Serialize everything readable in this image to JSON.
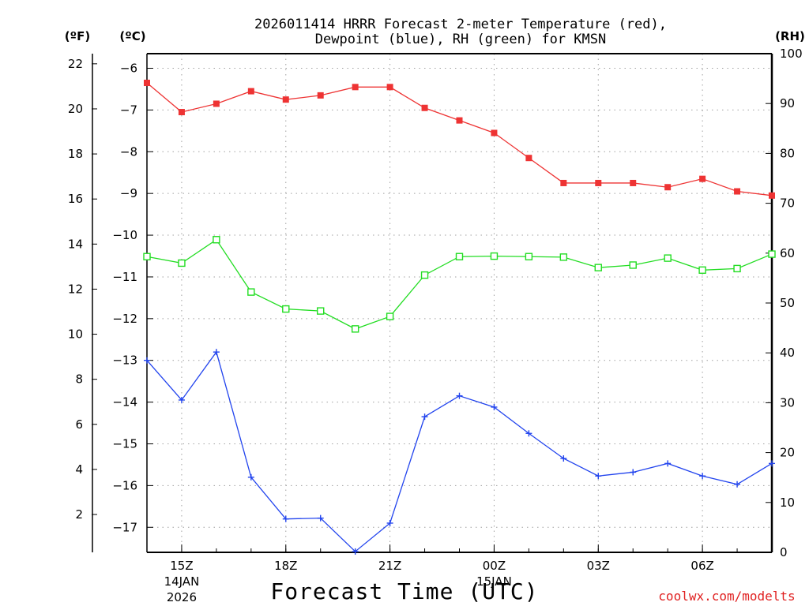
{
  "chart_data": {
    "type": "line",
    "title_line1": "2026011414 HRRR Forecast 2-meter Temperature (red),",
    "title_line2": "Dewpoint (blue), RH (green) for KMSN",
    "xlabel": "Forecast Time (UTC)",
    "credit": "coolwx.com/modelts",
    "units": {
      "fahrenheit": "(ºF)",
      "celsius": "(ºC)",
      "rh": "(RH)"
    },
    "x_hours_from_14Z": [
      0,
      1,
      2,
      3,
      4,
      5,
      6,
      7,
      8,
      9,
      10,
      11,
      12,
      13,
      14,
      15,
      16,
      17,
      18
    ],
    "x_ticks": [
      {
        "hour": 1,
        "label": "15Z",
        "sub1": "14JAN",
        "sub2": "2026"
      },
      {
        "hour": 4,
        "label": "18Z",
        "sub1": "",
        "sub2": ""
      },
      {
        "hour": 7,
        "label": "21Z",
        "sub1": "",
        "sub2": ""
      },
      {
        "hour": 10,
        "label": "00Z",
        "sub1": "15JAN",
        "sub2": ""
      },
      {
        "hour": 13,
        "label": "03Z",
        "sub1": "",
        "sub2": ""
      },
      {
        "hour": 16,
        "label": "06Z",
        "sub1": "",
        "sub2": ""
      }
    ],
    "xlim": [
      0,
      18
    ],
    "celsius_axis": {
      "lim": [
        -17.6,
        -5.65
      ],
      "ticks": [
        -17,
        -16,
        -15,
        -14,
        -13,
        -12,
        -11,
        -10,
        -9,
        -8,
        -7,
        -6
      ]
    },
    "fahrenheit_axis": {
      "lim": [
        0.32,
        22.45
      ],
      "ticks": [
        2,
        4,
        6,
        8,
        10,
        12,
        14,
        16,
        18,
        20,
        22
      ]
    },
    "rh_axis": {
      "lim": [
        0,
        100
      ],
      "ticks": [
        0,
        10,
        20,
        30,
        40,
        50,
        60,
        70,
        80,
        90,
        100
      ]
    },
    "series": [
      {
        "name": "Temperature",
        "axis": "celsius",
        "color": "#ee3333",
        "marker": "filled-square",
        "values": [
          -6.35,
          -7.05,
          -6.85,
          -6.55,
          -6.75,
          -6.65,
          -6.45,
          -6.45,
          -6.95,
          -7.25,
          -7.55,
          -8.15,
          -8.75,
          -8.75,
          -8.75,
          -8.85,
          -8.65,
          -8.95,
          -9.05
        ]
      },
      {
        "name": "Dewpoint",
        "axis": "celsius",
        "color": "#2244ee",
        "marker": "plus",
        "values": [
          -13.0,
          -13.95,
          -12.8,
          -15.8,
          -16.8,
          -16.78,
          -17.58,
          -16.9,
          -14.35,
          -13.85,
          -14.12,
          -14.75,
          -15.35,
          -15.77,
          -15.68,
          -15.47,
          -15.77,
          -15.97,
          -15.47
        ]
      },
      {
        "name": "RH",
        "axis": "rh",
        "color": "#22dd22",
        "marker": "open-square",
        "values": [
          59.3,
          58.0,
          62.7,
          52.2,
          48.8,
          48.4,
          44.8,
          47.3,
          55.6,
          59.3,
          59.4,
          59.3,
          59.2,
          57.1,
          57.6,
          59.0,
          56.6,
          56.9,
          59.8
        ]
      }
    ]
  }
}
